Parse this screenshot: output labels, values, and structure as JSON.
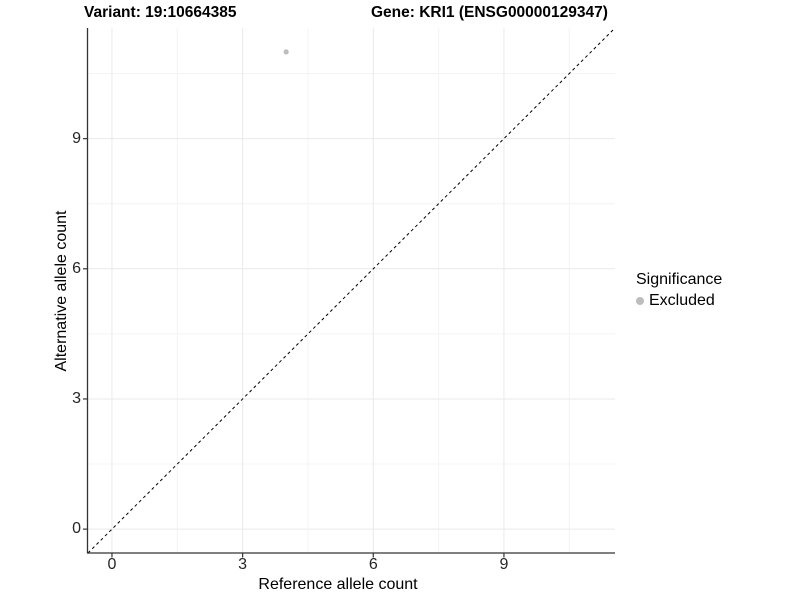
{
  "chart_data": {
    "type": "scatter",
    "title_left": "Variant: 19:10664385",
    "title_right": "Gene: KRI1 (ENSG00000129347)",
    "xlabel": "Reference allele count",
    "ylabel": "Alternative allele count",
    "xlim": [
      -0.55,
      11.55
    ],
    "ylim": [
      -0.55,
      11.55
    ],
    "x_ticks": [
      0,
      3,
      6,
      9
    ],
    "y_ticks": [
      0,
      3,
      6,
      9
    ],
    "x_tick_labels": [
      "0",
      "3",
      "6",
      "9"
    ],
    "y_tick_labels": [
      "0",
      "3",
      "6",
      "9"
    ],
    "x_minor_ticks": [
      1.5,
      4.5,
      7.5,
      10.5
    ],
    "y_minor_ticks": [
      1.5,
      4.5,
      7.5,
      10.5
    ],
    "grid": "major+minor",
    "reference_line": {
      "slope": 1,
      "intercept": 0,
      "style": "dashed",
      "color": "#000000"
    },
    "series": [
      {
        "name": "Excluded",
        "color": "#bdbdbd",
        "points": [
          [
            4,
            11
          ]
        ]
      }
    ],
    "legend": {
      "position": "right",
      "title": "Significance",
      "entries": [
        {
          "label": "Excluded",
          "color": "#bdbdbd",
          "marker": "circle"
        }
      ]
    },
    "colors": {
      "background": "#ffffff",
      "axis_line": "#333333",
      "grid_major": "#e9e9e9",
      "grid_minor": "#f4f4f4",
      "tick_text": "#262626",
      "point": "#bdbdbd"
    }
  }
}
